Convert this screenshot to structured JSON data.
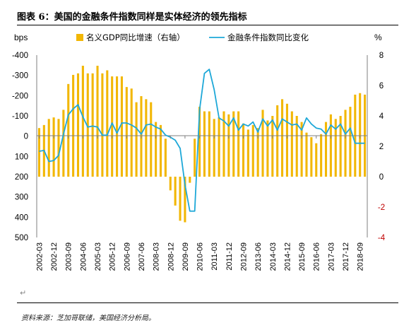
{
  "figure": {
    "title": "图表 6：美国的金融条件指数同样是实体经济的领先指标",
    "source": "资料来源：芝加哥联储，美国经济分析局。"
  },
  "colors": {
    "bar": "#F2B705",
    "line": "#1EA8D8",
    "text": "#000000",
    "axis_right": "#C00000"
  },
  "chart_data": {
    "type": "bar+line",
    "left_axis_unit": "bps",
    "right_axis_unit": "%",
    "left_ticks": [
      "-400",
      "-300",
      "-200",
      "-100",
      "0",
      "100",
      "200",
      "300",
      "400",
      "500"
    ],
    "right_ticks": [
      "8",
      "6",
      "4",
      "2",
      "0",
      "-2",
      "-4"
    ],
    "ylim_left": [
      -400,
      500
    ],
    "ylim_right": [
      -4,
      8
    ],
    "x_labels": [
      "2002-03",
      "2002-12",
      "2003-09",
      "2004-06",
      "2005-03",
      "2005-12",
      "2006-09",
      "2007-06",
      "2008-03",
      "2008-12",
      "2009-09",
      "2010-06",
      "2011-03",
      "2011-12",
      "2012-09",
      "2013-06",
      "2014-03",
      "2014-12",
      "2015-09",
      "2016-06",
      "2017-03",
      "2017-12",
      "2018-09"
    ],
    "series": [
      {
        "name": "名义GDP同比增速（右轴）",
        "type": "bar",
        "axis": "right",
        "x": [
          "2002-03",
          "2002-06",
          "2002-09",
          "2002-12",
          "2003-03",
          "2003-06",
          "2003-09",
          "2003-12",
          "2004-03",
          "2004-06",
          "2004-09",
          "2004-12",
          "2005-03",
          "2005-06",
          "2005-09",
          "2005-12",
          "2006-03",
          "2006-06",
          "2006-09",
          "2006-12",
          "2007-03",
          "2007-06",
          "2007-09",
          "2007-12",
          "2008-03",
          "2008-06",
          "2008-09",
          "2008-12",
          "2009-03",
          "2009-06",
          "2009-09",
          "2009-12",
          "2010-03",
          "2010-06",
          "2010-09",
          "2010-12",
          "2011-03",
          "2011-06",
          "2011-09",
          "2011-12",
          "2012-03",
          "2012-06",
          "2012-09",
          "2012-12",
          "2013-03",
          "2013-06",
          "2013-09",
          "2013-12",
          "2014-03",
          "2014-06",
          "2014-09",
          "2014-12",
          "2015-03",
          "2015-06",
          "2015-09",
          "2015-12",
          "2016-03",
          "2016-06",
          "2016-09",
          "2016-12",
          "2017-03",
          "2017-06",
          "2017-09",
          "2017-12",
          "2018-03",
          "2018-06",
          "2018-09",
          "2018-12"
        ],
        "values": [
          3.2,
          3.4,
          3.8,
          3.9,
          3.8,
          4.4,
          6.1,
          6.7,
          6.8,
          7.3,
          6.8,
          6.8,
          7.3,
          6.8,
          7.0,
          6.6,
          6.6,
          6.6,
          5.9,
          5.8,
          4.9,
          5.3,
          5.1,
          4.9,
          3.6,
          3.4,
          2.5,
          -0.9,
          -1.9,
          -2.9,
          -3.0,
          -0.4,
          2.5,
          4.6,
          4.3,
          4.3,
          3.8,
          3.9,
          4.3,
          4.1,
          4.3,
          4.3,
          3.5,
          3.1,
          3.4,
          3.2,
          4.4,
          3.7,
          4.0,
          4.7,
          5.1,
          4.8,
          4.3,
          4.0,
          3.6,
          2.9,
          2.6,
          2.2,
          2.8,
          3.6,
          4.1,
          3.8,
          4.0,
          4.4,
          4.6,
          5.4,
          5.5,
          5.4
        ]
      },
      {
        "name": "金融条件指数同比变化",
        "type": "line",
        "axis": "left",
        "x": [
          "2002-03",
          "2002-06",
          "2002-09",
          "2002-12",
          "2003-03",
          "2003-06",
          "2003-09",
          "2003-12",
          "2004-03",
          "2004-06",
          "2004-09",
          "2004-12",
          "2005-03",
          "2005-06",
          "2005-09",
          "2005-12",
          "2006-03",
          "2006-06",
          "2006-09",
          "2006-12",
          "2007-03",
          "2007-06",
          "2007-09",
          "2007-12",
          "2008-03",
          "2008-06",
          "2008-09",
          "2008-12",
          "2009-03",
          "2009-06",
          "2009-09",
          "2009-12",
          "2010-03",
          "2010-06",
          "2010-09",
          "2010-12",
          "2011-03",
          "2011-06",
          "2011-09",
          "2011-12",
          "2012-03",
          "2012-06",
          "2012-09",
          "2012-12",
          "2013-03",
          "2013-06",
          "2013-09",
          "2013-12",
          "2014-03",
          "2014-06",
          "2014-09",
          "2014-12",
          "2015-03",
          "2015-06",
          "2015-09",
          "2015-12",
          "2016-03",
          "2016-06",
          "2016-09",
          "2016-12",
          "2017-03",
          "2017-06",
          "2017-09",
          "2017-12",
          "2018-03",
          "2018-06",
          "2018-09",
          "2018-12"
        ],
        "values": [
          75,
          70,
          125,
          120,
          95,
          -10,
          -105,
          -135,
          -155,
          -95,
          -45,
          -50,
          -45,
          -5,
          -5,
          -65,
          -15,
          -65,
          -65,
          -55,
          -40,
          -10,
          -55,
          -60,
          -45,
          -35,
          -5,
          5,
          20,
          60,
          240,
          370,
          370,
          -130,
          -310,
          -330,
          -230,
          -90,
          -75,
          -50,
          -90,
          -30,
          -60,
          -50,
          -70,
          -20,
          -85,
          -50,
          -80,
          -30,
          -85,
          -70,
          -55,
          -60,
          -30,
          -90,
          -60,
          -40,
          -35,
          -10,
          -55,
          -35,
          -60,
          -10,
          -40,
          35,
          35,
          35
        ]
      }
    ],
    "legend": "top",
    "grid": false
  }
}
